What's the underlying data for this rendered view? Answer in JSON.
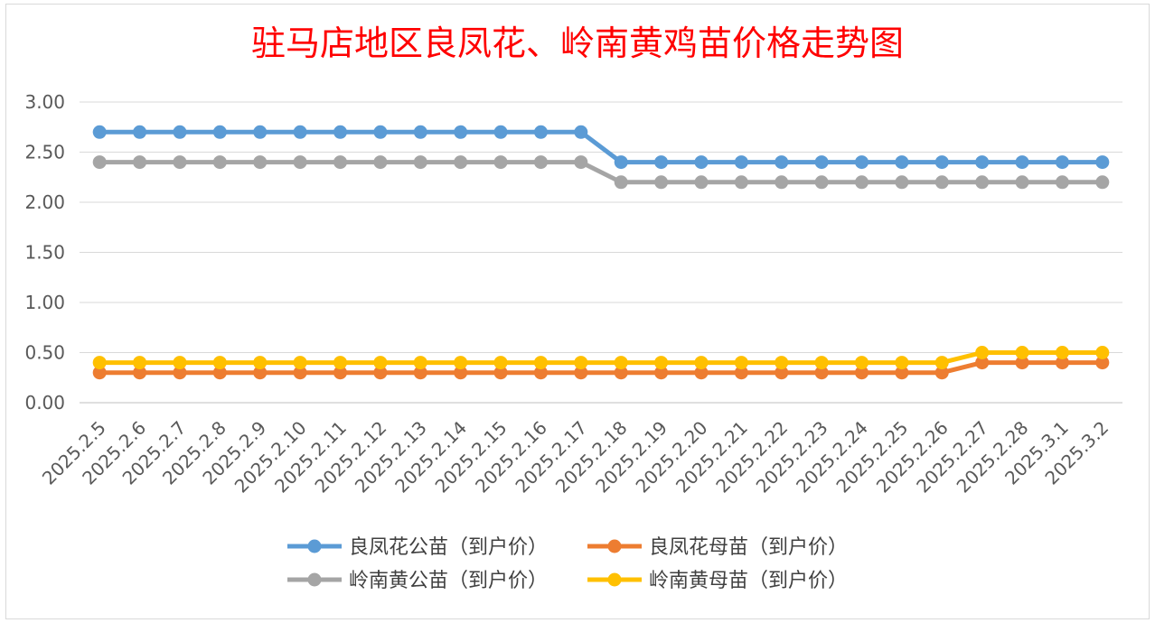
{
  "chart_data": {
    "type": "line",
    "title": "驻马店地区良凤花、岭南黄鸡苗价格走势图",
    "xlabel": "",
    "ylabel": "",
    "ylim": [
      0,
      3
    ],
    "yticks": [
      "0.00",
      "0.50",
      "1.00",
      "1.50",
      "2.00",
      "2.50",
      "3.00"
    ],
    "grid": true,
    "legend_position": "bottom",
    "categories": [
      "2025.2.5",
      "2025.2.6",
      "2025.2.7",
      "2025.2.8",
      "2025.2.9",
      "2025.2.10",
      "2025.2.11",
      "2025.2.12",
      "2025.2.13",
      "2025.2.14",
      "2025.2.15",
      "2025.2.16",
      "2025.2.17",
      "2025.2.18",
      "2025.2.19",
      "2025.2.20",
      "2025.2.21",
      "2025.2.22",
      "2025.2.23",
      "2025.2.24",
      "2025.2.25",
      "2025.2.26",
      "2025.2.27",
      "2025.2.28",
      "2025.3.1",
      "2025.3.2"
    ],
    "series": [
      {
        "name": "良凤花公苗（到户价）",
        "color": "#5b9bd5",
        "values": [
          2.7,
          2.7,
          2.7,
          2.7,
          2.7,
          2.7,
          2.7,
          2.7,
          2.7,
          2.7,
          2.7,
          2.7,
          2.7,
          2.4,
          2.4,
          2.4,
          2.4,
          2.4,
          2.4,
          2.4,
          2.4,
          2.4,
          2.4,
          2.4,
          2.4,
          2.4
        ]
      },
      {
        "name": "良凤花母苗（到户价）",
        "color": "#ed7d31",
        "values": [
          0.3,
          0.3,
          0.3,
          0.3,
          0.3,
          0.3,
          0.3,
          0.3,
          0.3,
          0.3,
          0.3,
          0.3,
          0.3,
          0.3,
          0.3,
          0.3,
          0.3,
          0.3,
          0.3,
          0.3,
          0.3,
          0.3,
          0.4,
          0.4,
          0.4,
          0.4
        ]
      },
      {
        "name": "岭南黄公苗（到户价）",
        "color": "#a5a5a5",
        "values": [
          2.4,
          2.4,
          2.4,
          2.4,
          2.4,
          2.4,
          2.4,
          2.4,
          2.4,
          2.4,
          2.4,
          2.4,
          2.4,
          2.2,
          2.2,
          2.2,
          2.2,
          2.2,
          2.2,
          2.2,
          2.2,
          2.2,
          2.2,
          2.2,
          2.2,
          2.2
        ]
      },
      {
        "name": "岭南黄母苗（到户价）",
        "color": "#ffc000",
        "values": [
          0.4,
          0.4,
          0.4,
          0.4,
          0.4,
          0.4,
          0.4,
          0.4,
          0.4,
          0.4,
          0.4,
          0.4,
          0.4,
          0.4,
          0.4,
          0.4,
          0.4,
          0.4,
          0.4,
          0.4,
          0.4,
          0.4,
          0.5,
          0.5,
          0.5,
          0.5
        ]
      }
    ],
    "title_color": "#ff0000"
  }
}
